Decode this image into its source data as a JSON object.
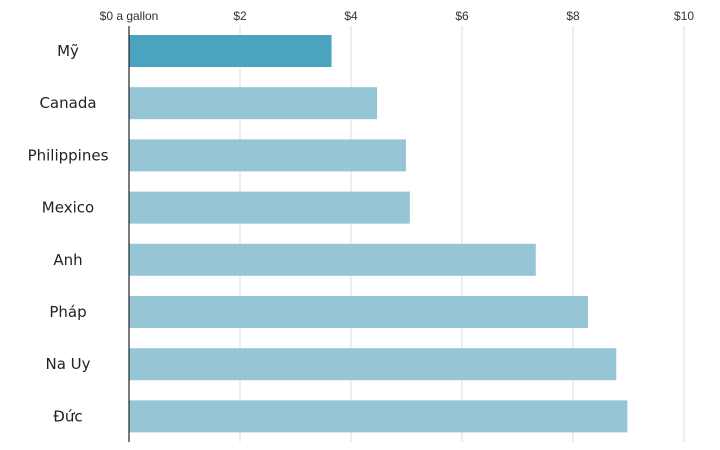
{
  "chart_data": {
    "type": "bar",
    "orientation": "horizontal",
    "categories": [
      "Mỹ",
      "Canada",
      "Philippines",
      "Mexico",
      "Anh",
      "Pháp",
      "Na Uy",
      "Đức"
    ],
    "values": [
      3.65,
      4.47,
      4.99,
      5.06,
      7.33,
      8.27,
      8.78,
      8.98
    ],
    "xlim": [
      0,
      10
    ],
    "ticks": [
      0,
      2,
      4,
      6,
      8,
      10
    ],
    "tick_labels": [
      "$0 a gallon",
      "$2",
      "$4",
      "$6",
      "$8",
      "$10"
    ],
    "grid": true,
    "colors": {
      "highlight": "#4aa3bf",
      "bar": "#96c6d6",
      "grid": "#dcdcdc",
      "axis": "#222222"
    },
    "highlight_index": 0
  }
}
